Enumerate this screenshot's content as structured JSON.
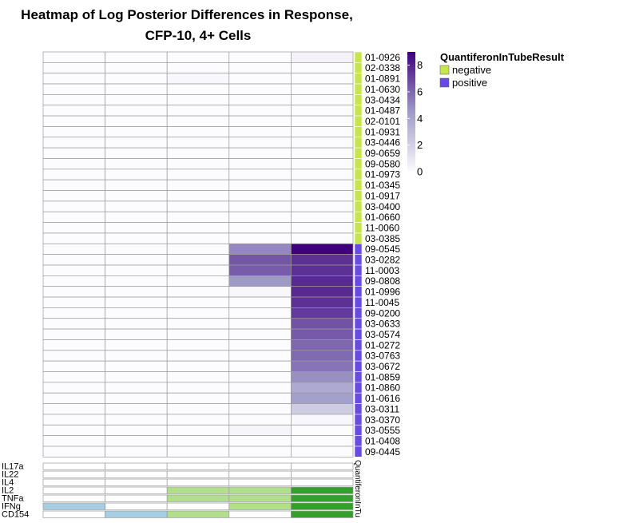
{
  "chart_data": {
    "type": "heatmap",
    "title_line1": "Heatmap of Log Posterior Differences in Response,",
    "title_line2": "CFP-10, 4+ Cells",
    "rows": [
      "01-0926",
      "02-0338",
      "01-0891",
      "01-0630",
      "03-0434",
      "01-0487",
      "02-0101",
      "01-0931",
      "03-0446",
      "09-0659",
      "09-0580",
      "01-0973",
      "01-0345",
      "01-0917",
      "03-0400",
      "01-0660",
      "11-0060",
      "03-0385",
      "09-0545",
      "03-0282",
      "11-0003",
      "09-0808",
      "01-0996",
      "11-0045",
      "09-0200",
      "03-0633",
      "03-0574",
      "01-0272",
      "03-0763",
      "03-0672",
      "01-0859",
      "01-0860",
      "01-0616",
      "03-0311",
      "03-0370",
      "03-0555",
      "01-0408",
      "09-0445"
    ],
    "row_group": [
      "negative",
      "negative",
      "negative",
      "negative",
      "negative",
      "negative",
      "negative",
      "negative",
      "negative",
      "negative",
      "negative",
      "negative",
      "negative",
      "negative",
      "negative",
      "negative",
      "negative",
      "negative",
      "positive",
      "positive",
      "positive",
      "positive",
      "positive",
      "positive",
      "positive",
      "positive",
      "positive",
      "positive",
      "positive",
      "positive",
      "positive",
      "positive",
      "positive",
      "positive",
      "positive",
      "positive",
      "positive",
      "positive"
    ],
    "values": [
      [
        0,
        0,
        0,
        0,
        0.4
      ],
      [
        0,
        0,
        0,
        0,
        0
      ],
      [
        0,
        0,
        0.2,
        0,
        0
      ],
      [
        0,
        0,
        0,
        0,
        0
      ],
      [
        0,
        0,
        0,
        0,
        0
      ],
      [
        0,
        0,
        0,
        0,
        0
      ],
      [
        0,
        0,
        0,
        0,
        0
      ],
      [
        0,
        0,
        0,
        0,
        0
      ],
      [
        0,
        0,
        0,
        0,
        0
      ],
      [
        0,
        0,
        0,
        0,
        0
      ],
      [
        0,
        0,
        0,
        0,
        0
      ],
      [
        0,
        0,
        0,
        0,
        0
      ],
      [
        0,
        0,
        0,
        0,
        0
      ],
      [
        0,
        0,
        0,
        0,
        0
      ],
      [
        0,
        0,
        0,
        0,
        0
      ],
      [
        0,
        0,
        0,
        0,
        0
      ],
      [
        0,
        0,
        0,
        0,
        0
      ],
      [
        0,
        0,
        0,
        0,
        0
      ],
      [
        0,
        0,
        0,
        5.0,
        9.0
      ],
      [
        0,
        0,
        0,
        6.5,
        7.6
      ],
      [
        0,
        0,
        0,
        6.3,
        7.6
      ],
      [
        0,
        0,
        0,
        4.5,
        7.8
      ],
      [
        0,
        0,
        0,
        0.2,
        7.8
      ],
      [
        0,
        0,
        0,
        0,
        7.6
      ],
      [
        0,
        0,
        0,
        0,
        7.3
      ],
      [
        0,
        0,
        0,
        0,
        6.6
      ],
      [
        0,
        0,
        0,
        0,
        6.4
      ],
      [
        0,
        0,
        0,
        0,
        6.0
      ],
      [
        0,
        0,
        0,
        0,
        5.9
      ],
      [
        0,
        0,
        0,
        0,
        5.6
      ],
      [
        0,
        0,
        0,
        0,
        4.8
      ],
      [
        0,
        0,
        0,
        0,
        3.8
      ],
      [
        0,
        0,
        0,
        0,
        4.2
      ],
      [
        0,
        0,
        0,
        0,
        2.2
      ],
      [
        0,
        0,
        0,
        0,
        0.2
      ],
      [
        0,
        0,
        0,
        0.3,
        0
      ],
      [
        0,
        0,
        0,
        0,
        0
      ],
      [
        0,
        0,
        0,
        0,
        0
      ]
    ],
    "colorbar": {
      "ticks": [
        "0",
        "2",
        "4",
        "6",
        "8"
      ],
      "range": [
        0,
        9
      ]
    },
    "functions": [
      "IL17a",
      "IL22",
      "IL4",
      "IL2",
      "TNFa",
      "IFNg",
      "CD154"
    ],
    "function_matrix": [
      [
        "off",
        "off",
        "off",
        "off",
        "off"
      ],
      [
        "off",
        "off",
        "off",
        "off",
        "off"
      ],
      [
        "off",
        "off",
        "off",
        "off",
        "off"
      ],
      [
        "off",
        "off",
        "light_green",
        "light_green",
        "green"
      ],
      [
        "off",
        "off",
        "light_green",
        "light_green",
        "green"
      ],
      [
        "light_blue",
        "off",
        "off",
        "light_green",
        "green"
      ],
      [
        "off",
        "light_blue",
        "light_green",
        "off",
        "green"
      ]
    ],
    "annotation_label": "QuantiferonInTu",
    "legend": {
      "title": "QuantiferonInTubeResult",
      "items": [
        {
          "label": "negative",
          "color": "#c7e64a"
        },
        {
          "label": "positive",
          "color": "#6a4ae6"
        }
      ]
    },
    "function_colors": {
      "off": "#ffffff",
      "light_blue": "#a6cee3",
      "light_green": "#b2df8a",
      "green": "#33a02c"
    },
    "colors": {
      "low": "#fcfbfd",
      "mid": "#9e9ac8",
      "high": "#3f007d",
      "grid": "#9a9a9a"
    }
  }
}
